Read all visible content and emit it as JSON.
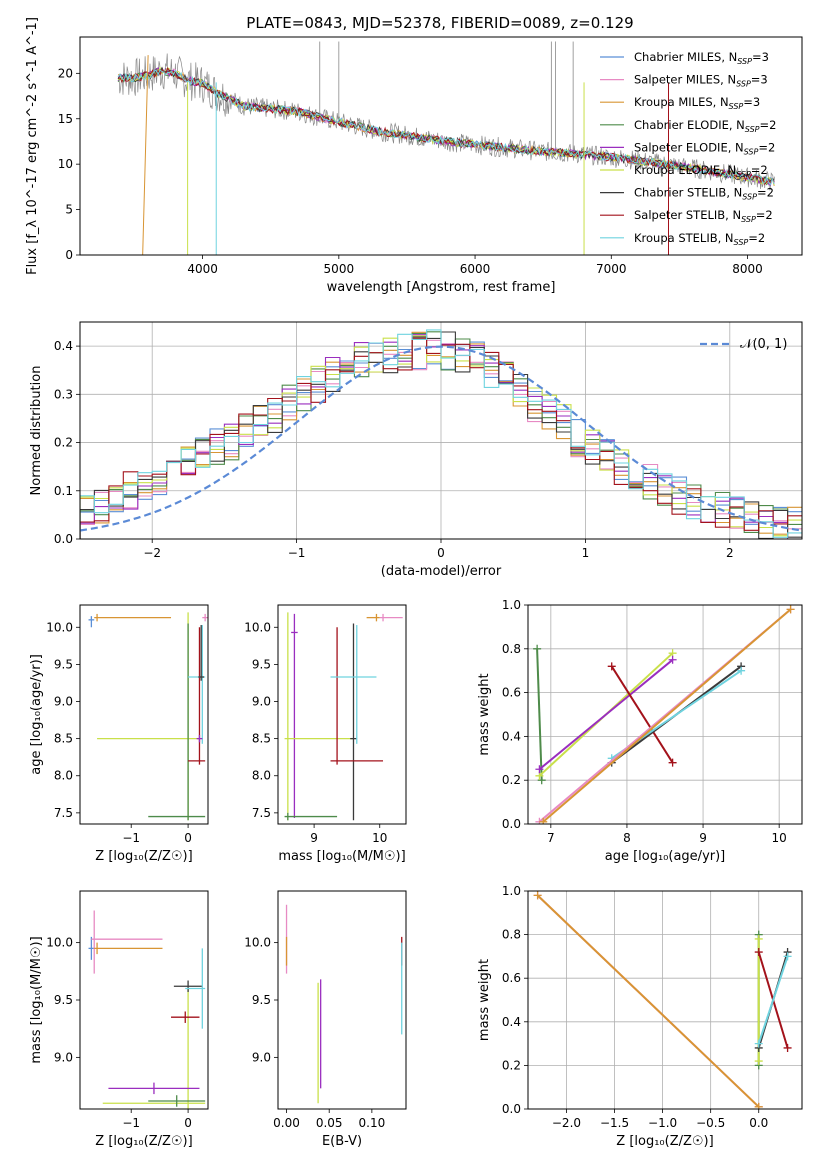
{
  "figure": {
    "title": "PLATE=0843, MJD=52378, FIBERID=0089, z=0.129",
    "colors": {
      "chabrier_miles": "#5b8fd6",
      "salpeter_miles": "#e78ac3",
      "kroupa_miles": "#d89534",
      "chabrier_elodie": "#4e8b4a",
      "salpeter_elodie": "#9a2ebf",
      "kroupa_elodie": "#c9e04a",
      "chabrier_stelib": "#3a3a3a",
      "salpeter_stelib": "#a3121b",
      "kroupa_stelib": "#6fd3df",
      "observed": "#888888",
      "gaussian": "#5b8ad6"
    }
  },
  "chart_data": [
    {
      "id": "spectrum",
      "type": "line",
      "xlabel": "wavelength [Angstrom, rest frame]",
      "ylabel": "Flux [f_λ 10^-17 erg cm^-2 s^-1 A^-1]",
      "xlim": [
        3100,
        8400
      ],
      "ylim": [
        0,
        24
      ],
      "xticks": [
        "4000",
        "5000",
        "6000",
        "7000",
        "8000"
      ],
      "yticks": [
        "0",
        "5",
        "10",
        "15",
        "20"
      ],
      "legend_position": "upper-right",
      "legend": [
        {
          "label": "Chabrier MILES, N",
          "sub": "SSP",
          "suffix": "=3",
          "color_key": "chabrier_miles"
        },
        {
          "label": "Salpeter MILES, N",
          "sub": "SSP",
          "suffix": "=3",
          "color_key": "salpeter_miles"
        },
        {
          "label": "Kroupa MILES, N",
          "sub": "SSP",
          "suffix": "=3",
          "color_key": "kroupa_miles"
        },
        {
          "label": "Chabrier ELODIE, N",
          "sub": "SSP",
          "suffix": "=2",
          "color_key": "chabrier_elodie"
        },
        {
          "label": "Salpeter ELODIE, N",
          "sub": "SSP",
          "suffix": "=2",
          "color_key": "salpeter_elodie"
        },
        {
          "label": "Kroupa ELODIE, N",
          "sub": "SSP",
          "suffix": "=2",
          "color_key": "kroupa_elodie"
        },
        {
          "label": "Chabrier STELIB, N",
          "sub": "SSP",
          "suffix": "=2",
          "color_key": "chabrier_stelib"
        },
        {
          "label": "Salpeter STELIB, N",
          "sub": "SSP",
          "suffix": "=2",
          "color_key": "salpeter_stelib"
        },
        {
          "label": "Kroupa STELIB, N",
          "sub": "SSP",
          "suffix": "=2",
          "color_key": "kroupa_stelib"
        }
      ],
      "observed": {
        "x": [
          3380,
          3500,
          3600,
          3700,
          3800,
          3900,
          4000,
          4100,
          4200,
          4300,
          4500,
          4700,
          4900,
          5100,
          5300,
          5500,
          5700,
          5900,
          6100,
          6300,
          6500,
          6700,
          6900,
          7100,
          7300,
          7500,
          7700,
          7900,
          8100,
          8200
        ],
        "y": [
          19.5,
          19.5,
          19.8,
          20.3,
          20.0,
          19.2,
          18.9,
          17.9,
          17.2,
          16.4,
          16.1,
          15.8,
          15.0,
          14.3,
          13.6,
          13.2,
          12.7,
          12.3,
          12.0,
          11.7,
          11.4,
          11.2,
          10.9,
          10.6,
          10.2,
          9.8,
          9.3,
          8.8,
          8.3,
          8.0
        ]
      }
    },
    {
      "id": "residuals",
      "type": "histogram",
      "xlabel": "(data-model)/error",
      "ylabel": "Normed distribution",
      "xlim": [
        -2.5,
        2.5
      ],
      "ylim": [
        0,
        0.45
      ],
      "xticks": [
        "−2",
        "−1",
        "0",
        "1",
        "2"
      ],
      "yticks": [
        "0.0",
        "0.1",
        "0.2",
        "0.3",
        "0.4"
      ],
      "bin_width": 0.1,
      "envelope": [
        0.06,
        0.07,
        0.08,
        0.1,
        0.11,
        0.13,
        0.14,
        0.16,
        0.18,
        0.19,
        0.2,
        0.22,
        0.24,
        0.26,
        0.28,
        0.3,
        0.32,
        0.34,
        0.35,
        0.37,
        0.38,
        0.38,
        0.39,
        0.39,
        0.4,
        0.39,
        0.38,
        0.37,
        0.35,
        0.33,
        0.31,
        0.28,
        0.26,
        0.24,
        0.21,
        0.19,
        0.17,
        0.15,
        0.13,
        0.12,
        0.1,
        0.09,
        0.08,
        0.07,
        0.06,
        0.05,
        0.05,
        0.04,
        0.04,
        0.03
      ],
      "legend": [
        {
          "label": "𝒩(0, 1)",
          "color_key": "gaussian",
          "style": "dashed"
        }
      ],
      "legend_position": "upper-right",
      "grid": true
    },
    {
      "id": "z_age",
      "type": "errorbar",
      "xlabel": "Z [log₁₀(Z/Z☉)]",
      "ylabel": "age  [log₁₀(age/yr)]",
      "xlim": [
        -1.9,
        0.35
      ],
      "ylim": [
        7.35,
        10.3
      ],
      "xticks": [
        "−1",
        "0"
      ],
      "yticks": [
        "7.5",
        "8.0",
        "8.5",
        "9.0",
        "9.5",
        "10.0"
      ],
      "bars": [
        {
          "color_key": "chabrier_miles",
          "x": -1.7,
          "y": 10.1,
          "xerr": [
            0.05,
            0.05
          ],
          "yerr": [
            0.1,
            0.05
          ]
        },
        {
          "color_key": "kroupa_miles",
          "x": -1.6,
          "y": 10.13,
          "xerr": [
            0.05,
            1.3
          ],
          "yerr": [
            0.05,
            0.05
          ]
        },
        {
          "color_key": "salpeter_miles",
          "x": 0.3,
          "y": 10.13,
          "xerr": [
            0.05,
            0.05
          ],
          "yerr": [
            0.05,
            0.05
          ]
        },
        {
          "color_key": "kroupa_elodie",
          "x": 0.0,
          "y": 8.5,
          "xerr": [
            1.6,
            0.2
          ],
          "yerr": [
            1.1,
            1.7
          ]
        },
        {
          "color_key": "chabrier_elodie",
          "x": 0.0,
          "y": 7.45,
          "xerr": [
            0.7,
            0.3
          ],
          "yerr": [
            0.05,
            2.6
          ]
        },
        {
          "color_key": "salpeter_stelib",
          "x": 0.2,
          "y": 8.2,
          "xerr": [
            0.2,
            0.1
          ],
          "yerr": [
            0.05,
            1.8
          ]
        },
        {
          "color_key": "kroupa_stelib",
          "x": 0.25,
          "y": 9.33,
          "xerr": [
            0.25,
            0.05
          ],
          "yerr": [
            0.9,
            0.7
          ]
        },
        {
          "color_key": "chabrier_stelib",
          "x": 0.23,
          "y": 9.33,
          "xerr": [
            0.05,
            0.05
          ],
          "yerr": [
            0.05,
            0.7
          ]
        },
        {
          "color_key": "salpeter_elodie",
          "x": 0.2,
          "y": 8.5,
          "xerr": [
            0.05,
            0.05
          ],
          "yerr": [
            0.05,
            0.05
          ]
        }
      ]
    },
    {
      "id": "mass_age",
      "type": "errorbar",
      "xlabel": "mass [log₁₀(M/M☉)]",
      "ylabel": "",
      "xlim": [
        8.45,
        10.4
      ],
      "ylim": [
        7.35,
        10.3
      ],
      "xticks": [
        "9",
        "10"
      ],
      "yticks": [
        "7.5",
        "8.0",
        "8.5",
        "9.0",
        "9.5",
        "10.0"
      ],
      "bars": [
        {
          "color_key": "salpeter_miles",
          "x": 10.05,
          "y": 10.13,
          "xerr": [
            0.05,
            0.3
          ],
          "yerr": [
            0.05,
            0.05
          ]
        },
        {
          "color_key": "kroupa_miles",
          "x": 9.95,
          "y": 10.13,
          "xerr": [
            0.15,
            0.05
          ],
          "yerr": [
            0.05,
            0.05
          ]
        },
        {
          "color_key": "salpeter_elodie",
          "x": 8.7,
          "y": 9.93,
          "xerr": [
            0.05,
            0.05
          ],
          "yerr": [
            2.5,
            0.25
          ]
        },
        {
          "color_key": "kroupa_elodie",
          "x": 8.6,
          "y": 8.5,
          "xerr": [
            0.05,
            1.0
          ],
          "yerr": [
            1.1,
            1.7
          ]
        },
        {
          "color_key": "chabrier_elodie",
          "x": 8.6,
          "y": 7.45,
          "xerr": [
            0.05,
            0.75
          ],
          "yerr": [
            0.05,
            0.05
          ]
        },
        {
          "color_key": "chabrier_stelib",
          "x": 9.6,
          "y": 8.5,
          "xerr": [
            0.05,
            0.05
          ],
          "yerr": [
            1.1,
            1.55
          ]
        },
        {
          "color_key": "salpeter_stelib",
          "x": 9.35,
          "y": 8.2,
          "xerr": [
            0.1,
            0.7
          ],
          "yerr": [
            0.05,
            1.8
          ]
        },
        {
          "color_key": "kroupa_stelib",
          "x": 9.65,
          "y": 9.33,
          "xerr": [
            0.4,
            0.3
          ],
          "yerr": [
            0.9,
            0.7
          ]
        }
      ]
    },
    {
      "id": "age_weight",
      "type": "line",
      "xlabel": "age  [log₁₀(age/yr)]",
      "ylabel": "mass weight",
      "xlim": [
        6.7,
        10.3
      ],
      "ylim": [
        0,
        1.0
      ],
      "xticks": [
        "7",
        "8",
        "9",
        "10"
      ],
      "yticks": [
        "0.0",
        "0.2",
        "0.4",
        "0.6",
        "0.8",
        "1.0"
      ],
      "grid": true,
      "series": [
        {
          "color_key": "chabrier_elodie",
          "x": [
            6.82,
            6.88
          ],
          "y": [
            0.8,
            0.2
          ]
        },
        {
          "color_key": "kroupa_elodie",
          "x": [
            6.85,
            8.6
          ],
          "y": [
            0.22,
            0.78
          ]
        },
        {
          "color_key": "salpeter_elodie",
          "x": [
            6.85,
            8.6
          ],
          "y": [
            0.25,
            0.75
          ]
        },
        {
          "color_key": "salpeter_stelib",
          "x": [
            7.8,
            8.6
          ],
          "y": [
            0.72,
            0.28
          ]
        },
        {
          "color_key": "chabrier_stelib",
          "x": [
            7.8,
            9.5
          ],
          "y": [
            0.28,
            0.72
          ]
        },
        {
          "color_key": "kroupa_stelib",
          "x": [
            7.8,
            9.5
          ],
          "y": [
            0.3,
            0.7
          ]
        },
        {
          "color_key": "salpeter_miles",
          "x": [
            6.85,
            10.15
          ],
          "y": [
            0.01,
            0.98
          ]
        },
        {
          "color_key": "kroupa_miles",
          "x": [
            6.9,
            10.15
          ],
          "y": [
            0.01,
            0.98
          ]
        }
      ]
    },
    {
      "id": "z_mass",
      "type": "errorbar",
      "xlabel": "Z [log₁₀(Z/Z☉)]",
      "ylabel": "mass [log₁₀(M/M☉)]",
      "xlim": [
        -1.9,
        0.35
      ],
      "ylim": [
        8.55,
        10.45
      ],
      "xticks": [
        "−1",
        "0"
      ],
      "yticks": [
        "9.0",
        "9.5",
        "10.0"
      ],
      "bars": [
        {
          "color_key": "chabrier_miles",
          "x": -1.7,
          "y": 9.95,
          "xerr": [
            0.05,
            0.05
          ],
          "yerr": [
            0.1,
            0.1
          ]
        },
        {
          "color_key": "salpeter_miles",
          "x": -1.65,
          "y": 10.03,
          "xerr": [
            0.05,
            1.2
          ],
          "yerr": [
            0.3,
            0.25
          ]
        },
        {
          "color_key": "kroupa_miles",
          "x": -1.6,
          "y": 9.95,
          "xerr": [
            0.05,
            1.15
          ],
          "yerr": [
            0.05,
            0.05
          ]
        },
        {
          "color_key": "kroupa_elodie",
          "x": 0.0,
          "y": 8.6,
          "xerr": [
            1.5,
            0.3
          ],
          "yerr": [
            0.05,
            1.0
          ]
        },
        {
          "color_key": "salpeter_elodie",
          "x": -0.6,
          "y": 8.73,
          "xerr": [
            0.8,
            0.8
          ],
          "yerr": [
            0.05,
            0.05
          ]
        },
        {
          "color_key": "chabrier_elodie",
          "x": -0.2,
          "y": 8.62,
          "xerr": [
            0.5,
            0.5
          ],
          "yerr": [
            0.05,
            0.05
          ]
        },
        {
          "color_key": "salpeter_stelib",
          "x": -0.05,
          "y": 9.35,
          "xerr": [
            0.25,
            0.25
          ],
          "yerr": [
            0.05,
            0.05
          ]
        },
        {
          "color_key": "chabrier_stelib",
          "x": 0.0,
          "y": 9.62,
          "xerr": [
            0.25,
            0.25
          ],
          "yerr": [
            0.05,
            0.05
          ]
        },
        {
          "color_key": "kroupa_stelib",
          "x": 0.25,
          "y": 9.6,
          "xerr": [
            0.3,
            0.05
          ],
          "yerr": [
            0.35,
            0.35
          ]
        }
      ]
    },
    {
      "id": "ebv_mass",
      "type": "errorbar",
      "xlabel": "E(B-V)",
      "ylabel": "",
      "xlim": [
        -0.01,
        0.14
      ],
      "ylim": [
        8.55,
        10.45
      ],
      "xticks": [
        "0.00",
        "0.05",
        "0.10"
      ],
      "yticks": [
        "9.0",
        "9.5",
        "10.0"
      ],
      "bars": [
        {
          "color_key": "salpeter_miles",
          "x": 0.0,
          "y": 10.03,
          "xerr": [
            0.0,
            0.0
          ],
          "yerr": [
            0.3,
            0.3
          ]
        },
        {
          "color_key": "kroupa_miles",
          "x": 0.0,
          "y": 9.95,
          "xerr": [
            0.0,
            0.0
          ],
          "yerr": [
            0.15,
            0.1
          ]
        },
        {
          "color_key": "kroupa_elodie",
          "x": 0.037,
          "y": 9.1,
          "xerr": [
            0.0,
            0.0
          ],
          "yerr": [
            0.5,
            0.55
          ]
        },
        {
          "color_key": "salpeter_elodie",
          "x": 0.04,
          "y": 9.2,
          "xerr": [
            0.0,
            0.0
          ],
          "yerr": [
            0.47,
            0.48
          ]
        },
        {
          "color_key": "salpeter_stelib",
          "x": 0.135,
          "y": 9.9,
          "xerr": [
            0.0,
            0.0
          ],
          "yerr": [
            0.1,
            0.15
          ]
        },
        {
          "color_key": "kroupa_stelib",
          "x": 0.135,
          "y": 9.6,
          "xerr": [
            0.0,
            0.0
          ],
          "yerr": [
            0.4,
            0.4
          ]
        }
      ]
    },
    {
      "id": "z_weight",
      "type": "line",
      "xlabel": "Z [log₁₀(Z/Z☉)]",
      "ylabel": "mass weight",
      "xlim": [
        -2.4,
        0.45
      ],
      "ylim": [
        0,
        1.0
      ],
      "xticks": [
        "−2.0",
        "−1.5",
        "−1.0",
        "−0.5",
        "0.0"
      ],
      "yticks": [
        "0.0",
        "0.2",
        "0.4",
        "0.6",
        "0.8",
        "1.0"
      ],
      "grid": true,
      "series": [
        {
          "color_key": "salpeter_miles",
          "x": [
            -2.3,
            0.0
          ],
          "y": [
            0.98,
            0.01
          ]
        },
        {
          "color_key": "kroupa_miles",
          "x": [
            -2.3,
            0.0
          ],
          "y": [
            0.98,
            0.01
          ]
        },
        {
          "color_key": "chabrier_elodie",
          "x": [
            0.0,
            0.0
          ],
          "y": [
            0.8,
            0.2
          ]
        },
        {
          "color_key": "kroupa_elodie",
          "x": [
            0.0,
            0.0
          ],
          "y": [
            0.78,
            0.22
          ]
        },
        {
          "color_key": "salpeter_stelib",
          "x": [
            0.0,
            0.3
          ],
          "y": [
            0.72,
            0.28
          ]
        },
        {
          "color_key": "chabrier_stelib",
          "x": [
            0.0,
            0.3
          ],
          "y": [
            0.28,
            0.72
          ]
        },
        {
          "color_key": "kroupa_stelib",
          "x": [
            0.0,
            0.3
          ],
          "y": [
            0.3,
            0.7
          ]
        }
      ]
    }
  ]
}
